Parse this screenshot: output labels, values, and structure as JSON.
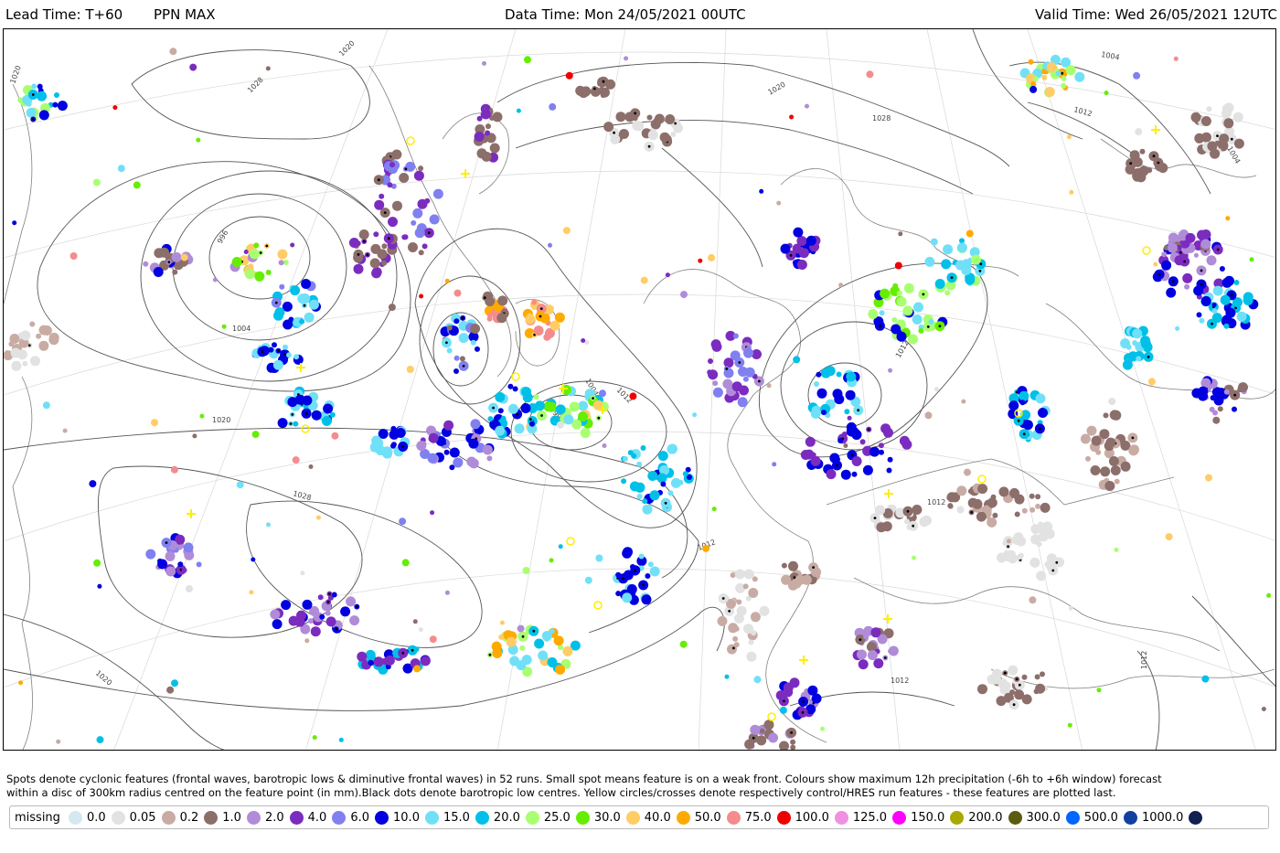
{
  "header": {
    "lead_time": "Lead Time: T+60",
    "parameter": "PPN MAX",
    "data_time": "Data Time: Mon 24/05/2021 00UTC",
    "valid_time": "Valid Time: Wed 26/05/2021 12UTC"
  },
  "isobar_labels": [
    "1020",
    "1028",
    "996",
    "1004",
    "1012",
    "1020",
    "1028",
    "1004",
    "1012",
    "1028",
    "1020",
    "1012",
    "1012",
    "1004",
    "1012",
    "1020",
    "1020",
    "1012",
    "1012",
    "1004",
    "996"
  ],
  "caption": {
    "line1": "Spots denote cyclonic features (frontal waves, barotropic lows & diminutive frontal waves) in 52 runs. Small spot means feature is on a weak front. Colours show maximum 12h precipitation (-6h to +6h window) forecast",
    "line2": "within a disc of 300km radius centred on the feature point (in mm).Black dots denote barotropic low centres. Yellow circles/crosses denote respectively control/HRES run features - these features are plotted last."
  },
  "legend": {
    "missing_label": "missing",
    "items": [
      {
        "label": "0.0",
        "color": "#d4e8f0"
      },
      {
        "label": "0.05",
        "color": "#e2e2e2"
      },
      {
        "label": "0.2",
        "color": "#c8aca4"
      },
      {
        "label": "1.0",
        "color": "#8c6e6a"
      },
      {
        "label": "2.0",
        "color": "#b08cd8"
      },
      {
        "label": "4.0",
        "color": "#7b2cbf"
      },
      {
        "label": "6.0",
        "color": "#8080f0"
      },
      {
        "label": "10.0",
        "color": "#0000e0"
      },
      {
        "label": "15.0",
        "color": "#70e0f8"
      },
      {
        "label": "20.0",
        "color": "#00c0e8"
      },
      {
        "label": "25.0",
        "color": "#a8ff70"
      },
      {
        "label": "30.0",
        "color": "#66ee00"
      },
      {
        "label": "40.0",
        "color": "#ffcc66"
      },
      {
        "label": "50.0",
        "color": "#ffaa00"
      },
      {
        "label": "75.0",
        "color": "#f48c8c"
      },
      {
        "label": "100.0",
        "color": "#ee0000"
      },
      {
        "label": "125.0",
        "color": "#f090e0"
      },
      {
        "label": "150.0",
        "color": "#ff00ff"
      },
      {
        "label": "200.0",
        "color": "#a8a800"
      },
      {
        "label": "300.0",
        "color": "#5c5c10"
      },
      {
        "label": "500.0",
        "color": "#0066ff"
      },
      {
        "label": "1000.0",
        "color": "#1040a0"
      },
      {
        "label": "",
        "color": "#102050"
      }
    ]
  },
  "spot_clusters": [
    {
      "color": "#70e0f8"
    },
    {
      "color": "#0000e0"
    },
    {
      "color": "#00c0e8"
    },
    {
      "color": "#8c6e6a"
    },
    {
      "color": "#7b2cbf"
    },
    {
      "color": "#a8ff70"
    },
    {
      "color": "#66ee00"
    },
    {
      "color": "#ffaa00"
    },
    {
      "color": "#f48c8c"
    },
    {
      "color": "#ffcc66"
    },
    {
      "color": "#b08cd8"
    },
    {
      "color": "#8080f0"
    },
    {
      "color": "#e2e2e2"
    },
    {
      "color": "#c8aca4"
    },
    {
      "color": "#ee0000"
    }
  ]
}
